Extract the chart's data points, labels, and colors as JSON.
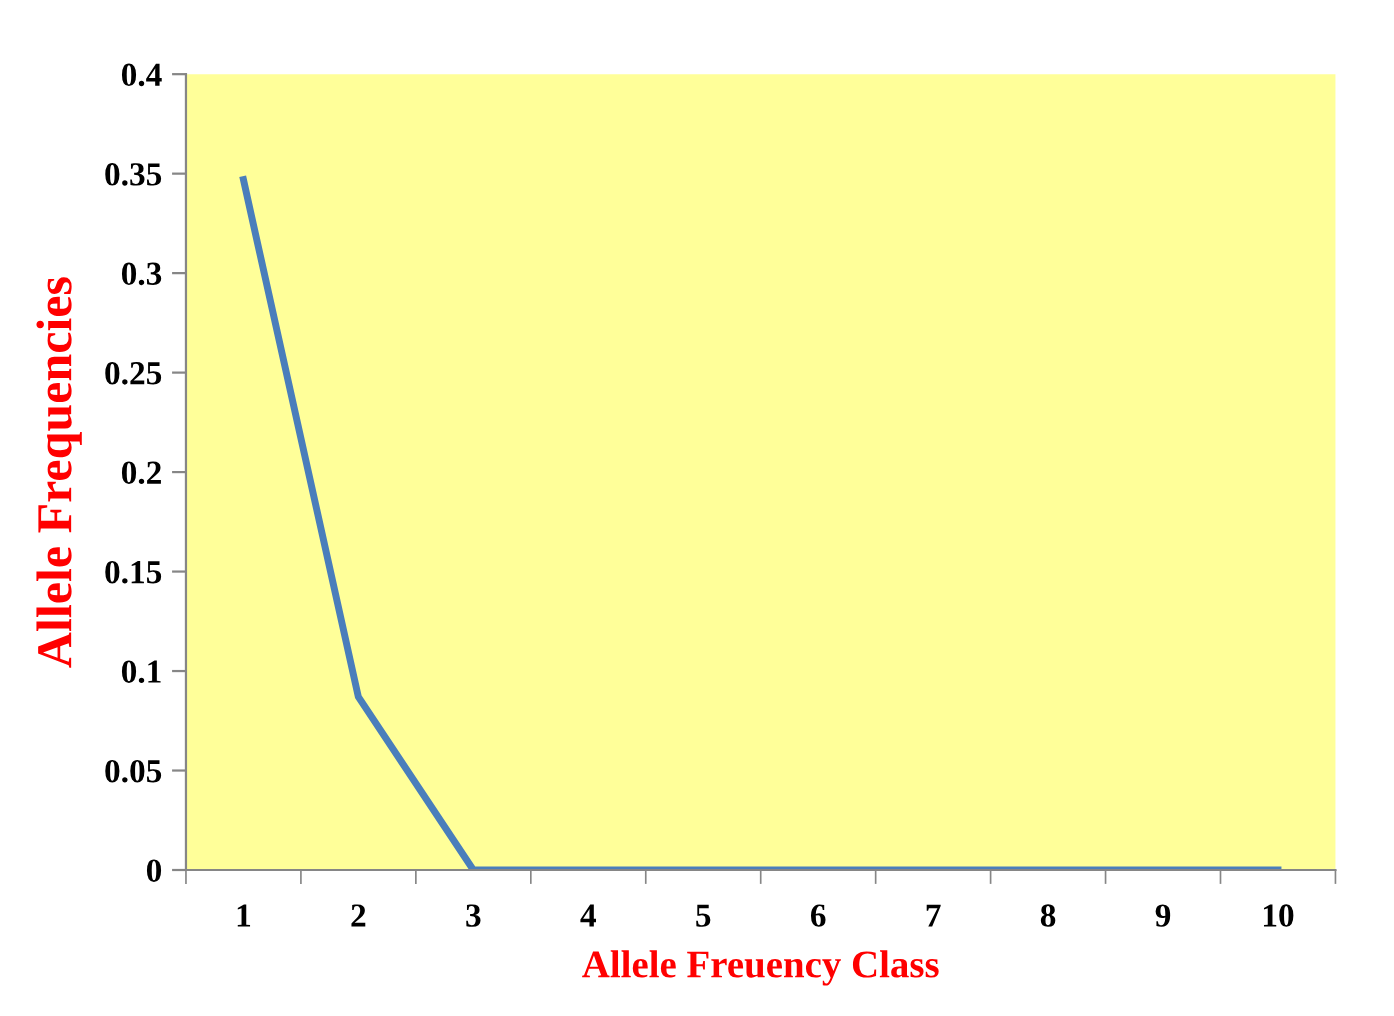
{
  "chart_data": {
    "type": "line",
    "xlabel": "Allele Freuency Class",
    "ylabel": "Allele Frequencies",
    "categories": [
      "1",
      "2",
      "3",
      "4",
      "5",
      "6",
      "7",
      "8",
      "9",
      "10"
    ],
    "series": [
      {
        "color": "#4a7ebb",
        "values": [
          0.347,
          0.087,
          0,
          0,
          0,
          0,
          0,
          0,
          0,
          0
        ]
      }
    ],
    "ylim": [
      0,
      0.4
    ],
    "yticks": [
      0,
      0.05,
      0.1,
      0.15,
      0.2,
      0.25,
      0.3,
      0.35,
      0.4
    ],
    "grid": false,
    "marker": "none",
    "line_style": "solid"
  }
}
